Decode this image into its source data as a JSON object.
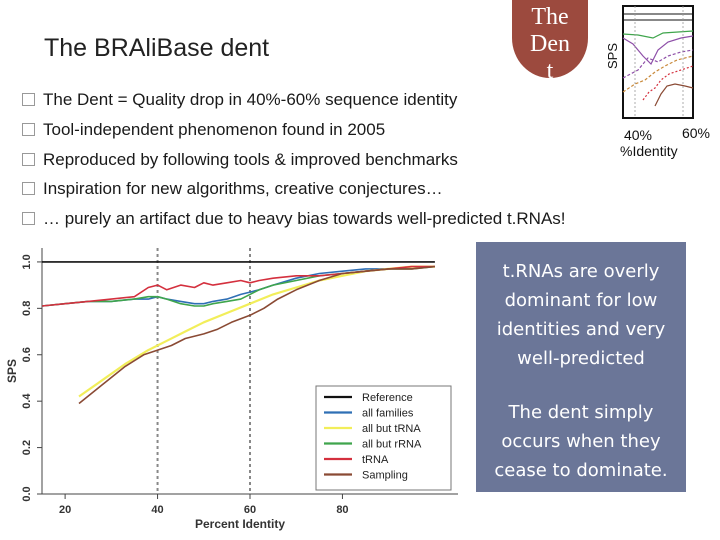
{
  "slide": {
    "title": "The BRAliBase dent",
    "bubble_lines": [
      "The",
      "Den",
      "t"
    ],
    "bullets": [
      "The Dent = Quality drop in 40%-60% sequence identity",
      "Tool-independent phenomenon found in 2005",
      "Reproduced by following tools & improved benchmarks",
      "Inspiration for new algorithms, creative conjectures…",
      "… purely an artifact due to heavy bias towards well-predicted t.RNAs!"
    ],
    "note_text_1": "t.RNAs are overly dominant for low identities and very well-predicted",
    "note_text_2": "The dent simply occurs when they cease to dominate."
  },
  "mini_chart": {
    "ylabel": "SPS",
    "x_left_label": "40%",
    "x_right_label": "60%",
    "xlabel": "%Identity"
  },
  "chart_data": {
    "type": "line",
    "xlabel": "Percent Identity",
    "ylabel": "SPS",
    "xlim": [
      15,
      105
    ],
    "ylim": [
      0.0,
      1.06
    ],
    "x_ticks": [
      "20",
      "40",
      "60",
      "80"
    ],
    "y_ticks": [
      "0.0",
      "0.2",
      "0.4",
      "0.6",
      "0.8",
      "1.0"
    ],
    "vlines": [
      40,
      60
    ],
    "legend_position": "bottom-right",
    "series": [
      {
        "name": "Reference",
        "color": "#111111",
        "x": [
          15,
          100
        ],
        "y": [
          1.0,
          1.0
        ]
      },
      {
        "name": "all families",
        "color": "#2f6fb5",
        "x": [
          15,
          20,
          25,
          30,
          35,
          38,
          40,
          42,
          45,
          48,
          50,
          52,
          55,
          58,
          60,
          62,
          65,
          70,
          75,
          80,
          85,
          90,
          95,
          100
        ],
        "y": [
          0.81,
          0.82,
          0.83,
          0.83,
          0.84,
          0.84,
          0.85,
          0.84,
          0.83,
          0.82,
          0.82,
          0.83,
          0.84,
          0.86,
          0.87,
          0.88,
          0.9,
          0.93,
          0.95,
          0.96,
          0.97,
          0.97,
          0.98,
          0.98
        ]
      },
      {
        "name": "all but tRNA",
        "color": "#f2ee5a",
        "x": [
          23,
          28,
          33,
          38,
          42,
          46,
          50,
          55,
          60,
          65,
          70,
          75,
          80,
          85,
          90,
          95,
          100
        ],
        "y": [
          0.42,
          0.49,
          0.56,
          0.62,
          0.66,
          0.7,
          0.74,
          0.78,
          0.82,
          0.86,
          0.89,
          0.92,
          0.94,
          0.96,
          0.97,
          0.98,
          0.98
        ]
      },
      {
        "name": "all but rRNA",
        "color": "#3fa54c",
        "x": [
          15,
          20,
          25,
          30,
          35,
          38,
          40,
          42,
          45,
          48,
          50,
          52,
          55,
          58,
          60,
          62,
          65,
          70,
          75,
          80,
          85,
          90,
          95,
          100
        ],
        "y": [
          0.81,
          0.82,
          0.83,
          0.83,
          0.84,
          0.85,
          0.85,
          0.84,
          0.82,
          0.81,
          0.81,
          0.82,
          0.83,
          0.84,
          0.86,
          0.88,
          0.9,
          0.92,
          0.94,
          0.95,
          0.96,
          0.97,
          0.97,
          0.98
        ]
      },
      {
        "name": "tRNA",
        "color": "#d4303e",
        "x": [
          15,
          20,
          25,
          30,
          35,
          38,
          40,
          42,
          45,
          48,
          50,
          52,
          55,
          58,
          60,
          62,
          65,
          70,
          75,
          80,
          85,
          90,
          95,
          100
        ],
        "y": [
          0.81,
          0.82,
          0.83,
          0.84,
          0.85,
          0.89,
          0.9,
          0.88,
          0.9,
          0.89,
          0.91,
          0.9,
          0.91,
          0.92,
          0.91,
          0.92,
          0.93,
          0.94,
          0.94,
          0.95,
          0.96,
          0.97,
          0.98,
          0.98
        ]
      },
      {
        "name": "Sampling",
        "color": "#8a4a34",
        "x": [
          23,
          28,
          33,
          37,
          40,
          43,
          46,
          50,
          53,
          56,
          60,
          63,
          66,
          70,
          75,
          80,
          85,
          90,
          95,
          100
        ],
        "y": [
          0.39,
          0.47,
          0.55,
          0.6,
          0.62,
          0.64,
          0.67,
          0.69,
          0.71,
          0.74,
          0.77,
          0.8,
          0.84,
          0.88,
          0.92,
          0.95,
          0.96,
          0.97,
          0.97,
          0.98
        ]
      }
    ]
  }
}
